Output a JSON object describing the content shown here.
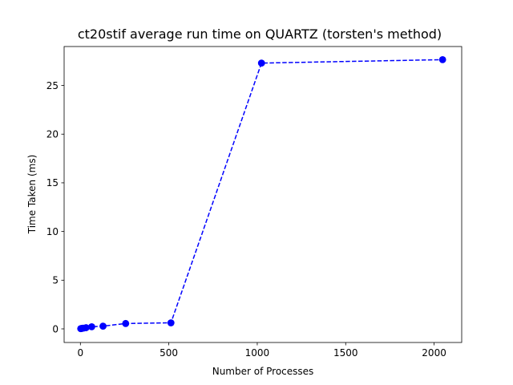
{
  "chart_data": {
    "type": "line",
    "title": "ct20stif average run time on QUARTZ (torsten's method)",
    "xlabel": "Number of Processes",
    "ylabel": "Time Taken (ms)",
    "xlim": [
      -92,
      2156
    ],
    "ylim": [
      -1.4,
      29.0
    ],
    "xticks": [
      0,
      500,
      1000,
      1500,
      2000
    ],
    "yticks": [
      0,
      5,
      10,
      15,
      20,
      25
    ],
    "grid": false,
    "legend": "none",
    "series": [
      {
        "color": "#0000ff",
        "line_style": "dashed",
        "marker": "circle",
        "x": [
          2,
          4,
          8,
          16,
          32,
          64,
          128,
          256,
          512,
          1024,
          2048
        ],
        "y": [
          0.02,
          0.03,
          0.05,
          0.07,
          0.12,
          0.22,
          0.28,
          0.55,
          0.62,
          27.3,
          27.65
        ]
      }
    ]
  }
}
